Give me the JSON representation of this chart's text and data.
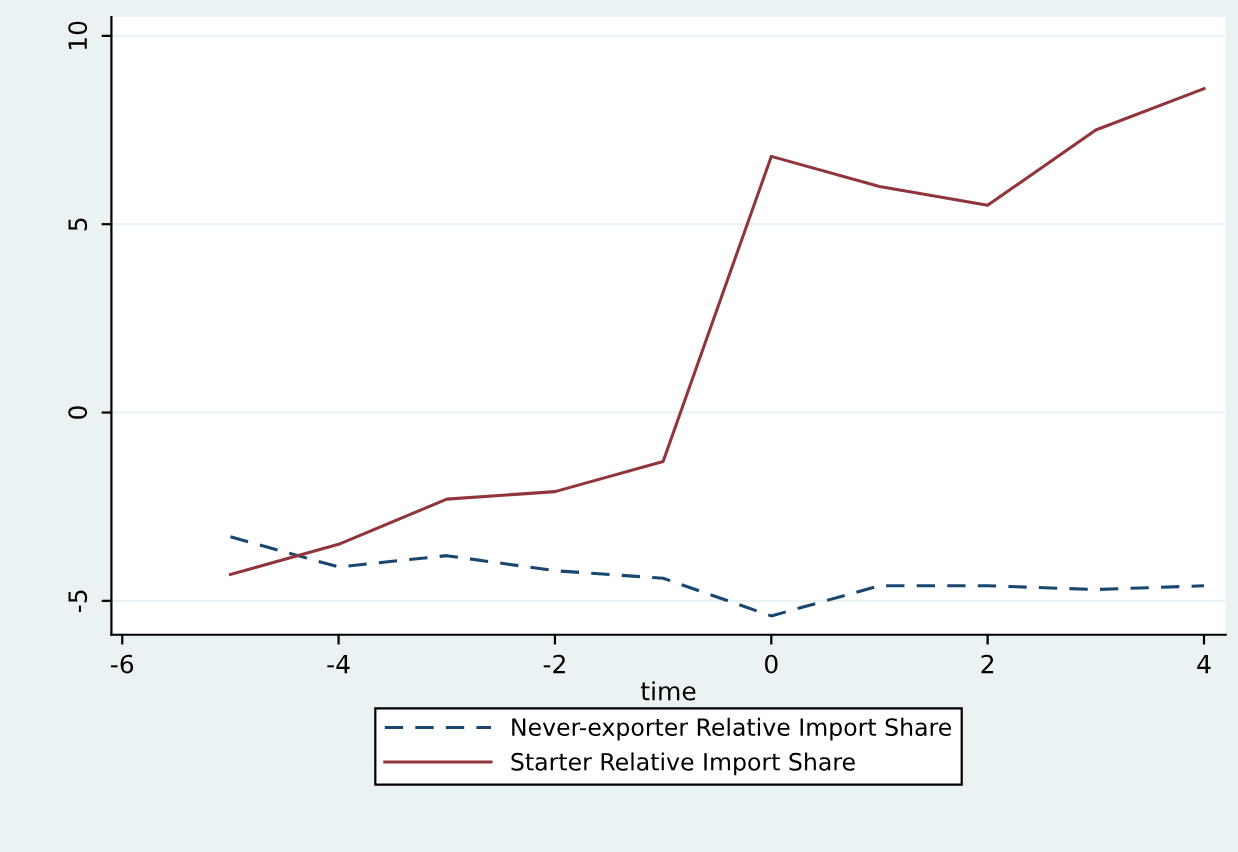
{
  "chart_data": {
    "type": "line",
    "xlabel": "time",
    "x": [
      -5,
      -4,
      -3,
      -2,
      -1,
      0,
      1,
      2,
      3,
      4
    ],
    "series": [
      {
        "name": "Never-exporter Relative Import Share",
        "color": "#1a476f",
        "line_style": "dashed",
        "values": [
          -3.3,
          -4.1,
          -3.8,
          -4.2,
          -4.4,
          -5.4,
          -4.6,
          -4.6,
          -4.7,
          -4.6
        ]
      },
      {
        "name": "Starter Relative Import Share",
        "color": "#90353b",
        "line_style": "solid",
        "values": [
          -4.3,
          -3.5,
          -2.3,
          -2.1,
          -1.3,
          6.8,
          6.0,
          5.5,
          7.5,
          8.6
        ]
      }
    ],
    "xlim": [
      -6.1,
      4.2
    ],
    "ylim": [
      -5.9,
      10.5
    ],
    "xticks": [
      -6,
      -4,
      -2,
      0,
      2,
      4
    ],
    "yticks": [
      -5,
      0,
      5,
      10
    ],
    "grid": "y",
    "legend": "bottom",
    "marker": "none"
  }
}
